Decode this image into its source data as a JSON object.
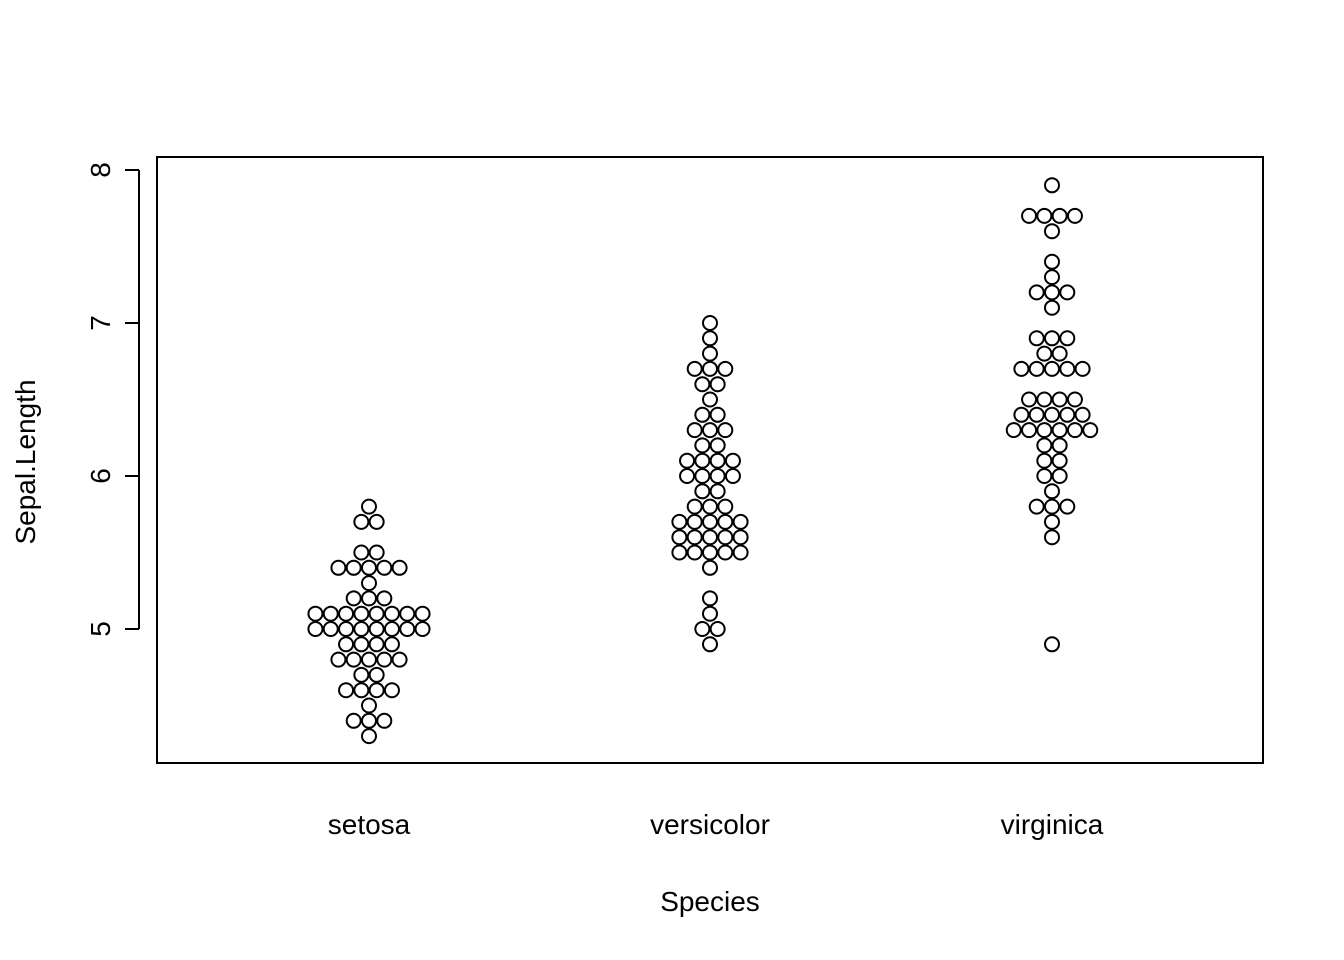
{
  "chart_data": {
    "type": "scatter",
    "style": "beeswarm",
    "xlabel": "Species",
    "ylabel": "Sepal.Length",
    "ylim": [
      4.3,
      7.9
    ],
    "yticks": [
      5,
      6,
      7,
      8
    ],
    "grid": false,
    "legend": "none",
    "point_color": "#000000",
    "categories": [
      "setosa",
      "versicolor",
      "virginica"
    ],
    "series": [
      {
        "category": "setosa",
        "values": [
          4.3,
          4.4,
          4.4,
          4.4,
          4.5,
          4.6,
          4.6,
          4.6,
          4.6,
          4.7,
          4.7,
          4.8,
          4.8,
          4.8,
          4.8,
          4.8,
          4.9,
          4.9,
          4.9,
          4.9,
          5.0,
          5.0,
          5.0,
          5.0,
          5.0,
          5.0,
          5.0,
          5.0,
          5.1,
          5.1,
          5.1,
          5.1,
          5.1,
          5.1,
          5.1,
          5.1,
          5.2,
          5.2,
          5.2,
          5.3,
          5.4,
          5.4,
          5.4,
          5.4,
          5.4,
          5.5,
          5.5,
          5.7,
          5.7,
          5.8
        ]
      },
      {
        "category": "versicolor",
        "values": [
          4.9,
          5.0,
          5.0,
          5.1,
          5.2,
          5.4,
          5.5,
          5.5,
          5.5,
          5.5,
          5.5,
          5.6,
          5.6,
          5.6,
          5.6,
          5.6,
          5.7,
          5.7,
          5.7,
          5.7,
          5.7,
          5.8,
          5.8,
          5.8,
          5.9,
          5.9,
          6.0,
          6.0,
          6.0,
          6.0,
          6.1,
          6.1,
          6.1,
          6.1,
          6.2,
          6.2,
          6.3,
          6.3,
          6.3,
          6.4,
          6.4,
          6.5,
          6.6,
          6.6,
          6.7,
          6.7,
          6.7,
          6.8,
          6.9,
          7.0
        ]
      },
      {
        "category": "virginica",
        "values": [
          4.9,
          5.6,
          5.7,
          5.8,
          5.8,
          5.8,
          5.9,
          6.0,
          6.0,
          6.1,
          6.1,
          6.2,
          6.2,
          6.3,
          6.3,
          6.3,
          6.3,
          6.3,
          6.3,
          6.4,
          6.4,
          6.4,
          6.4,
          6.4,
          6.5,
          6.5,
          6.5,
          6.5,
          6.7,
          6.7,
          6.7,
          6.7,
          6.7,
          6.8,
          6.8,
          6.9,
          6.9,
          6.9,
          7.1,
          7.2,
          7.2,
          7.2,
          7.3,
          7.4,
          7.6,
          7.7,
          7.7,
          7.7,
          7.7,
          7.9
        ]
      }
    ]
  }
}
